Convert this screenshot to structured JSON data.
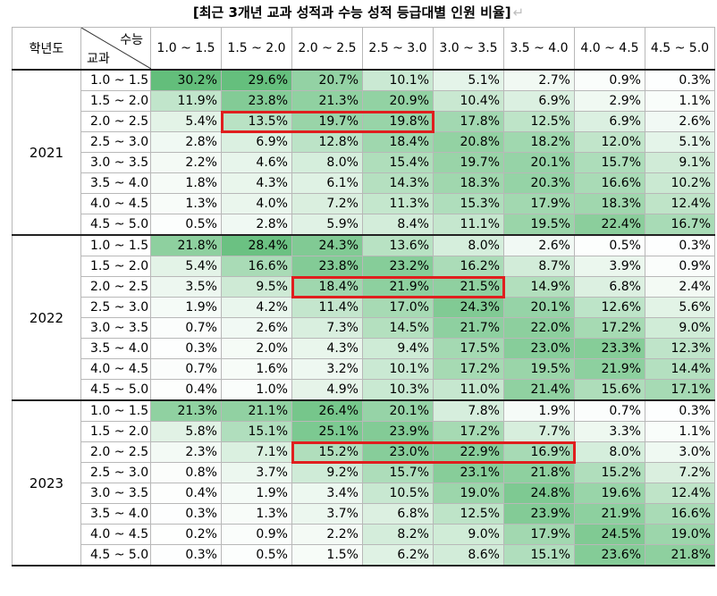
{
  "title": "[최근 3개년 교과 성적과 수능 성적 등급대별 인원 비율]",
  "title_mark": "↵",
  "header": {
    "year_label": "학년도",
    "diag_top": "수능",
    "diag_bottom": "교과",
    "columns": [
      "1.0 ~ 1.5",
      "1.5 ~ 2.0",
      "2.0 ~ 2.5",
      "2.5 ~ 3.0",
      "3.0 ~ 3.5",
      "3.5 ~ 4.0",
      "4.0 ~ 4.5",
      "4.5 ~ 5.0"
    ]
  },
  "highlight_color": "#e01e1e",
  "groups": [
    {
      "year": "2021",
      "highlight": {
        "row": 2,
        "from_col": 1,
        "to_col": 3
      },
      "rows": [
        {
          "label": "1.0 ~ 1.5",
          "values": [
            "30.2%",
            "29.6%",
            "20.7%",
            "10.1%",
            "5.1%",
            "2.7%",
            "0.9%",
            "0.3%"
          ]
        },
        {
          "label": "1.5 ~ 2.0",
          "values": [
            "11.9%",
            "23.8%",
            "21.3%",
            "20.9%",
            "10.4%",
            "6.9%",
            "2.9%",
            "1.1%"
          ]
        },
        {
          "label": "2.0 ~ 2.5",
          "values": [
            "5.4%",
            "13.5%",
            "19.7%",
            "19.8%",
            "17.8%",
            "12.5%",
            "6.9%",
            "2.6%"
          ]
        },
        {
          "label": "2.5 ~ 3.0",
          "values": [
            "2.8%",
            "6.9%",
            "12.8%",
            "18.4%",
            "20.8%",
            "18.2%",
            "12.0%",
            "5.1%"
          ]
        },
        {
          "label": "3.0 ~ 3.5",
          "values": [
            "2.2%",
            "4.6%",
            "8.0%",
            "15.4%",
            "19.7%",
            "20.1%",
            "15.7%",
            "9.1%"
          ]
        },
        {
          "label": "3.5 ~ 4.0",
          "values": [
            "1.8%",
            "4.3%",
            "6.1%",
            "14.3%",
            "18.3%",
            "20.3%",
            "16.6%",
            "10.2%"
          ]
        },
        {
          "label": "4.0 ~ 4.5",
          "values": [
            "1.3%",
            "4.0%",
            "7.2%",
            "11.3%",
            "15.3%",
            "17.9%",
            "18.3%",
            "12.4%"
          ]
        },
        {
          "label": "4.5 ~ 5.0",
          "values": [
            "0.5%",
            "2.8%",
            "5.9%",
            "8.4%",
            "11.1%",
            "19.5%",
            "22.4%",
            "16.7%"
          ]
        }
      ]
    },
    {
      "year": "2022",
      "highlight": {
        "row": 2,
        "from_col": 2,
        "to_col": 4
      },
      "rows": [
        {
          "label": "1.0 ~ 1.5",
          "values": [
            "21.8%",
            "28.4%",
            "24.3%",
            "13.6%",
            "8.0%",
            "2.6%",
            "0.5%",
            "0.3%"
          ]
        },
        {
          "label": "1.5 ~ 2.0",
          "values": [
            "5.4%",
            "16.6%",
            "23.8%",
            "23.2%",
            "16.2%",
            "8.7%",
            "3.9%",
            "0.9%"
          ]
        },
        {
          "label": "2.0 ~ 2.5",
          "values": [
            "3.5%",
            "9.5%",
            "18.4%",
            "21.9%",
            "21.5%",
            "14.9%",
            "6.8%",
            "2.4%"
          ]
        },
        {
          "label": "2.5 ~ 3.0",
          "values": [
            "1.9%",
            "4.2%",
            "11.4%",
            "17.0%",
            "24.3%",
            "20.1%",
            "12.6%",
            "5.6%"
          ]
        },
        {
          "label": "3.0 ~ 3.5",
          "values": [
            "0.7%",
            "2.6%",
            "7.3%",
            "14.5%",
            "21.7%",
            "22.0%",
            "17.2%",
            "9.0%"
          ]
        },
        {
          "label": "3.5 ~ 4.0",
          "values": [
            "0.3%",
            "2.0%",
            "4.3%",
            "9.4%",
            "17.5%",
            "23.0%",
            "23.3%",
            "12.3%"
          ]
        },
        {
          "label": "4.0 ~ 4.5",
          "values": [
            "0.7%",
            "1.6%",
            "3.2%",
            "10.1%",
            "17.2%",
            "19.5%",
            "21.9%",
            "14.4%"
          ]
        },
        {
          "label": "4.5 ~ 5.0",
          "values": [
            "0.4%",
            "1.0%",
            "4.9%",
            "10.3%",
            "11.0%",
            "21.4%",
            "15.6%",
            "17.1%"
          ]
        }
      ]
    },
    {
      "year": "2023",
      "highlight": {
        "row": 2,
        "from_col": 2,
        "to_col": 5
      },
      "rows": [
        {
          "label": "1.0 ~ 1.5",
          "values": [
            "21.3%",
            "21.1%",
            "26.4%",
            "20.1%",
            "7.8%",
            "1.9%",
            "0.7%",
            "0.3%"
          ]
        },
        {
          "label": "1.5 ~ 2.0",
          "values": [
            "5.8%",
            "15.1%",
            "25.1%",
            "23.9%",
            "17.2%",
            "7.7%",
            "3.3%",
            "1.1%"
          ]
        },
        {
          "label": "2.0 ~ 2.5",
          "values": [
            "2.3%",
            "7.1%",
            "15.2%",
            "23.0%",
            "22.9%",
            "16.9%",
            "8.0%",
            "3.0%"
          ]
        },
        {
          "label": "2.5 ~ 3.0",
          "values": [
            "0.8%",
            "3.7%",
            "9.2%",
            "15.7%",
            "23.1%",
            "21.8%",
            "15.2%",
            "7.2%"
          ]
        },
        {
          "label": "3.0 ~ 3.5",
          "values": [
            "0.4%",
            "1.9%",
            "3.4%",
            "10.5%",
            "19.0%",
            "24.8%",
            "19.6%",
            "12.4%"
          ]
        },
        {
          "label": "3.5 ~ 4.0",
          "values": [
            "0.3%",
            "1.3%",
            "3.7%",
            "6.8%",
            "12.5%",
            "23.9%",
            "21.9%",
            "16.6%"
          ]
        },
        {
          "label": "4.0 ~ 4.5",
          "values": [
            "0.2%",
            "0.9%",
            "2.2%",
            "8.2%",
            "9.0%",
            "17.9%",
            "24.5%",
            "19.0%"
          ]
        },
        {
          "label": "4.5 ~ 5.0",
          "values": [
            "0.3%",
            "0.5%",
            "1.5%",
            "6.2%",
            "8.6%",
            "15.1%",
            "23.6%",
            "21.8%"
          ]
        }
      ]
    }
  ]
}
